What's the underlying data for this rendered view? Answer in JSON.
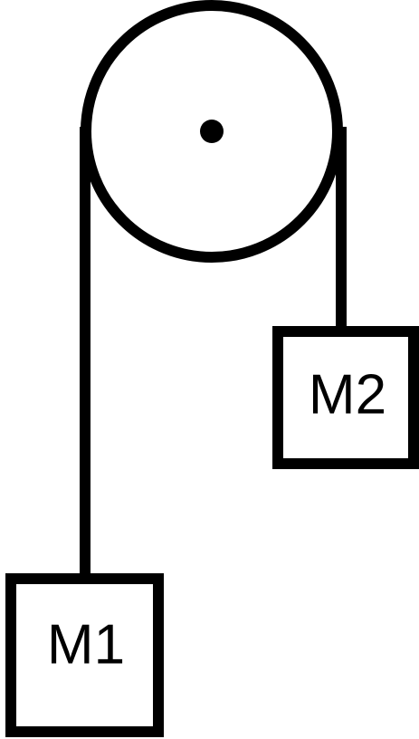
{
  "masses": [
    {
      "label": "M1"
    },
    {
      "label": "M2"
    }
  ]
}
